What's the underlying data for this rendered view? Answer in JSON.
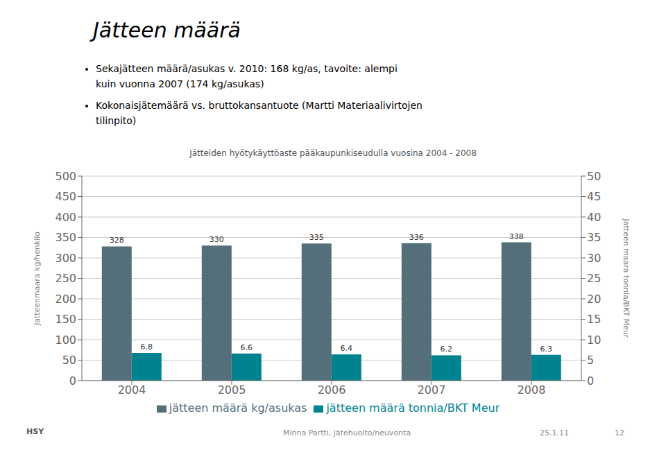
{
  "chart_data": {
    "type": "bar",
    "title": "Jätteiden hyötykäyttöaste pääkaupunkiseudulla vuosina 2004 - 2008",
    "categories": [
      2004,
      2005,
      2006,
      2007,
      2008
    ],
    "series": [
      {
        "name": "jätteen määrä kg/asukas",
        "color": "#546e7a",
        "values": [
          328,
          330,
          335,
          336,
          338
        ]
      },
      {
        "name": "jätteen määrä tonnia/BKT Meur",
        "color": "#00838f",
        "values": [
          6.8,
          6.6,
          6.4,
          6.2,
          6.3
        ],
        "axis": "y2"
      }
    ],
    "ylabel": "Jatteenmaara kg/henkilo",
    "y2label": "Jatteen maara tonnia/BKT Meur",
    "ylim": [
      0,
      500
    ],
    "yticks": [
      0,
      50,
      100,
      150,
      200,
      250,
      300,
      350,
      400,
      450,
      500
    ],
    "y2lim": [
      0,
      50
    ],
    "y2ticks": [
      0,
      5,
      10,
      15,
      20,
      25,
      30,
      35,
      40,
      45,
      50
    ],
    "grid": true,
    "legend": "bottom",
    "data_labels": true,
    "annotations": [
      "Jätteen määrä",
      "Sekajätteen määrä/asukas v. 2010: 168 kg/as, tavoite: alempi",
      "kuin vuonna 2007 (174 kg/asukas)",
      "Kokonaisjätemäärä vs. bruttokansantuote (Martti Materiaalivirtojen",
      "tilinpito)",
      "Minna Partti, jätehuolto/neuvonta",
      "25.1.11",
      "12",
      "HSY"
    ]
  }
}
